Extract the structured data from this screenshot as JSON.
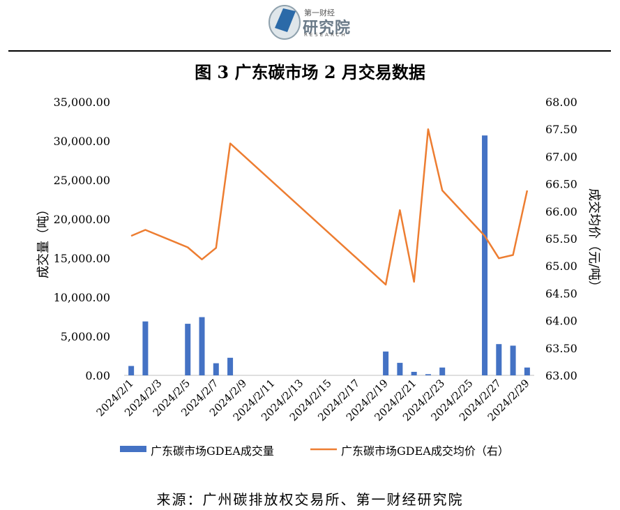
{
  "header": {
    "logo_small": "第一财经",
    "logo_main": "研究院",
    "logo_en": "RESEARCH"
  },
  "colors": {
    "bar": "#4472C4",
    "line": "#ED7D31"
  },
  "chart_data": {
    "type": "bar",
    "title": "图 3 广东碳市场 2 月交易数据",
    "ylabel": "成交量（吨）",
    "y2label": "成交均价（元/吨）",
    "ylim": [
      0,
      35000
    ],
    "y2lim": [
      63.0,
      68.0
    ],
    "yticks": [
      "0.00",
      "5,000.00",
      "10,000.00",
      "15,000.00",
      "20,000.00",
      "25,000.00",
      "30,000.00",
      "35,000.00"
    ],
    "y2ticks": [
      "63.00",
      "63.50",
      "64.00",
      "64.50",
      "65.00",
      "65.50",
      "66.00",
      "66.50",
      "67.00",
      "67.50",
      "68.00"
    ],
    "categories": [
      "2024/2/1",
      "2024/2/2",
      "2024/2/3",
      "2024/2/4",
      "2024/2/5",
      "2024/2/6",
      "2024/2/7",
      "2024/2/8",
      "2024/2/9",
      "2024/2/10",
      "2024/2/11",
      "2024/2/12",
      "2024/2/13",
      "2024/2/14",
      "2024/2/15",
      "2024/2/16",
      "2024/2/17",
      "2024/2/18",
      "2024/2/19",
      "2024/2/20",
      "2024/2/21",
      "2024/2/22",
      "2024/2/23",
      "2024/2/24",
      "2024/2/25",
      "2024/2/26",
      "2024/2/27",
      "2024/2/28",
      "2024/2/29"
    ],
    "xtick_labels": [
      "2024/2/1",
      "2024/2/3",
      "2024/2/5",
      "2024/2/7",
      "2024/2/9",
      "2024/2/11",
      "2024/2/13",
      "2024/2/15",
      "2024/2/17",
      "2024/2/19",
      "2024/2/21",
      "2024/2/23",
      "2024/2/25",
      "2024/2/27",
      "2024/2/29"
    ],
    "series": [
      {
        "name": "广东碳市场GDEA成交量",
        "type": "bar",
        "axis": "left",
        "values": [
          1200,
          6900,
          null,
          null,
          6600,
          7450,
          1550,
          2250,
          null,
          null,
          null,
          null,
          null,
          null,
          null,
          null,
          null,
          null,
          3050,
          1600,
          450,
          150,
          1000,
          null,
          null,
          30700,
          4000,
          3800,
          1000
        ]
      },
      {
        "name": "广东碳市场GDEA成交均价（右）",
        "type": "line",
        "axis": "right",
        "points": [
          [
            "2024/2/1",
            65.55
          ],
          [
            "2024/2/2",
            65.66
          ],
          [
            "2024/2/5",
            65.34
          ],
          [
            "2024/2/6",
            65.12
          ],
          [
            "2024/2/7",
            65.33
          ],
          [
            "2024/2/8",
            67.24
          ],
          [
            "2024/2/19",
            64.66
          ],
          [
            "2024/2/20",
            66.02
          ],
          [
            "2024/2/21",
            64.71
          ],
          [
            "2024/2/22",
            67.5
          ],
          [
            "2024/2/23",
            66.38
          ],
          [
            "2024/2/26",
            65.55
          ],
          [
            "2024/2/27",
            65.14
          ],
          [
            "2024/2/28",
            65.2
          ],
          [
            "2024/2/29",
            66.38
          ]
        ]
      }
    ],
    "legend_position": "bottom",
    "grid": false
  },
  "footer": {
    "source": "来源：广州碳排放权交易所、第一财经研究院"
  }
}
